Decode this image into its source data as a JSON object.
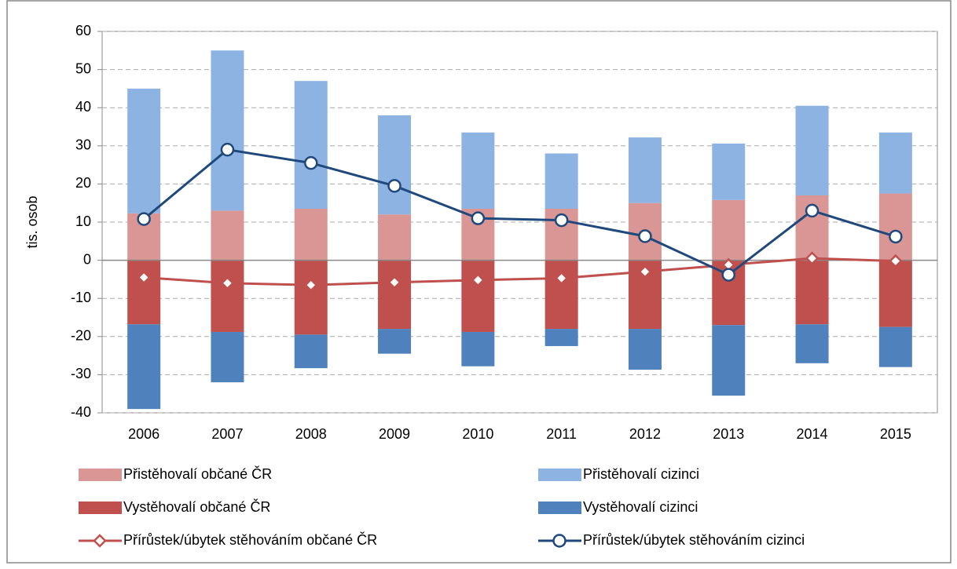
{
  "chart_data": {
    "type": "bar",
    "stacked": true,
    "ylabel": "tis. osob",
    "categories": [
      "2006",
      "2007",
      "2008",
      "2009",
      "2010",
      "2011",
      "2012",
      "2013",
      "2014",
      "2015"
    ],
    "ylim": [
      -40,
      60
    ],
    "yticks": [
      -40,
      -30,
      -20,
      -10,
      0,
      10,
      20,
      30,
      40,
      50,
      60
    ],
    "grid": true,
    "series": [
      {
        "name": "Přistěhovalí občané ČR",
        "type": "bar",
        "color": "#d99694",
        "values": [
          12.3,
          13,
          13.5,
          12,
          13.5,
          13.5,
          15,
          15.8,
          17,
          17.5
        ]
      },
      {
        "name": "Přistěhovalí cizinci",
        "type": "bar",
        "color": "#8db3e2",
        "values": [
          32.7,
          42,
          33.5,
          26,
          20,
          14.5,
          17.2,
          14.8,
          23.5,
          16
        ]
      },
      {
        "name": "Vystěhovalí občané ČR",
        "type": "bar",
        "color": "#c0504d",
        "values": [
          -16.8,
          -18.8,
          -19.5,
          -18,
          -18.8,
          -18,
          -18,
          -17,
          -16.8,
          -17.5
        ]
      },
      {
        "name": "Vystěhovalí cizinci",
        "type": "bar",
        "color": "#4f81bd",
        "values": [
          -22.2,
          -13.2,
          -8.8,
          -6.5,
          -9,
          -4.5,
          -10.7,
          -18.5,
          -10.2,
          -10.5
        ]
      },
      {
        "name": "Přírůstek/úbytek stěhováním občané ČR",
        "type": "line",
        "marker": "diamond",
        "color": "#c0504d",
        "values": [
          -4.5,
          -6,
          -6.5,
          -5.8,
          -5.2,
          -4.7,
          -3,
          -1.2,
          0.5,
          -0.2
        ]
      },
      {
        "name": "Přírůstek/úbytek stěhováním cizinci",
        "type": "line",
        "marker": "circle",
        "color": "#1f497d",
        "values": [
          10.8,
          29,
          25.5,
          19.5,
          11,
          10.5,
          6.3,
          -3.8,
          13,
          6.2
        ]
      }
    ]
  }
}
